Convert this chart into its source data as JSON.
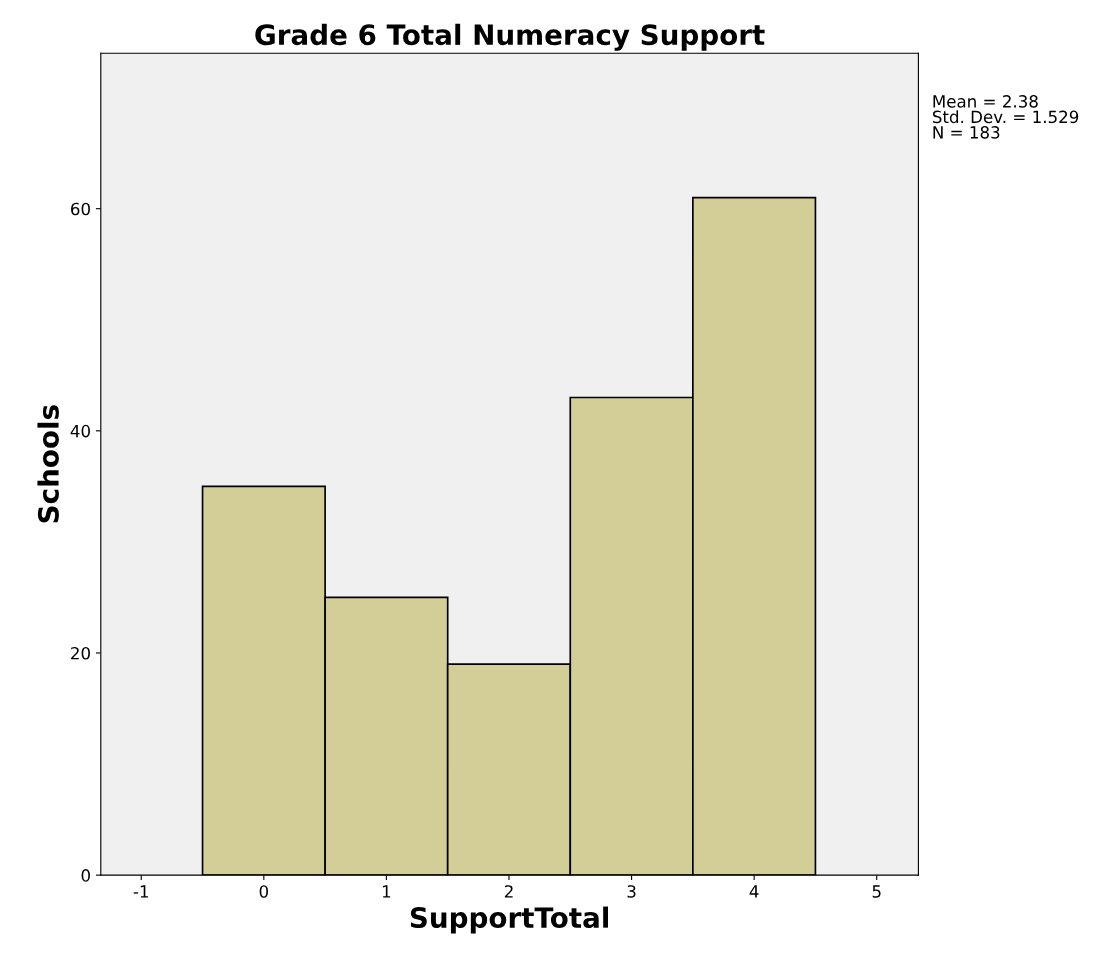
{
  "chart_data": {
    "type": "histogram",
    "title": "Grade 6 Total Numeracy Support",
    "xlabel": "SupportTotal",
    "ylabel": "Schools",
    "bins": [
      -0.5,
      0.5,
      1.5,
      2.5,
      3.5,
      4.5
    ],
    "values": [
      35,
      25,
      19,
      43,
      61
    ],
    "color": "#d3ce97",
    "xlim": [
      -1.33,
      5.34
    ],
    "xticks": [
      -1,
      0,
      1,
      2,
      3,
      4,
      5
    ],
    "ylim": [
      0,
      74
    ],
    "yticks": [
      0,
      20,
      40,
      60
    ],
    "annotations": [
      "Mean = 2.38\nStd. Dev. = 1.529\nN = 183"
    ],
    "grid": false,
    "legend": false
  }
}
